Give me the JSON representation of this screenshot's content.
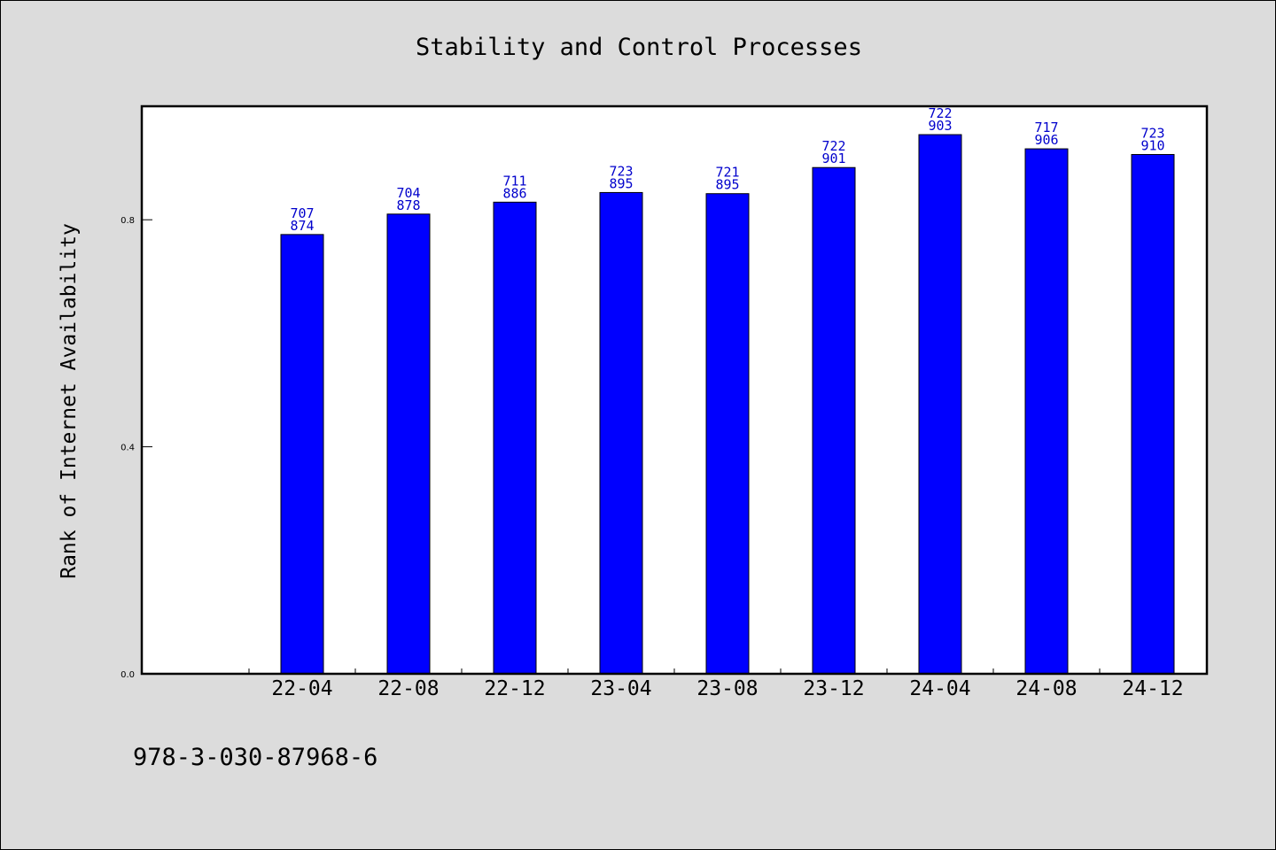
{
  "chart_data": {
    "type": "bar",
    "title": "Stability and Control Processes",
    "ylabel": "Rank of Internet Availability",
    "xlabel": "",
    "categories": [
      "22-04",
      "22-08",
      "22-12",
      "23-04",
      "23-08",
      "23-12",
      "24-04",
      "24-08",
      "24-12"
    ],
    "series": [
      {
        "values": [
          0.774,
          0.81,
          0.831,
          0.848,
          0.846,
          0.892,
          0.95,
          0.925,
          0.915
        ],
        "color": "#0000ff",
        "labels_top": [
          "707",
          "704",
          "711",
          "723",
          "721",
          "722",
          "722",
          "717",
          "723"
        ],
        "labels_bottom": [
          "874",
          "878",
          "886",
          "895",
          "895",
          "901",
          "903",
          "906",
          "910"
        ]
      }
    ],
    "ylim": [
      0.0,
      1.0
    ],
    "yticks": [
      0.0,
      0.4,
      0.8
    ],
    "ytick_labels": [
      "0.0",
      "0.4",
      "0.8"
    ],
    "grid": false,
    "legend": "none"
  },
  "footer": {
    "identifier": "978-3-030-87968-6"
  }
}
